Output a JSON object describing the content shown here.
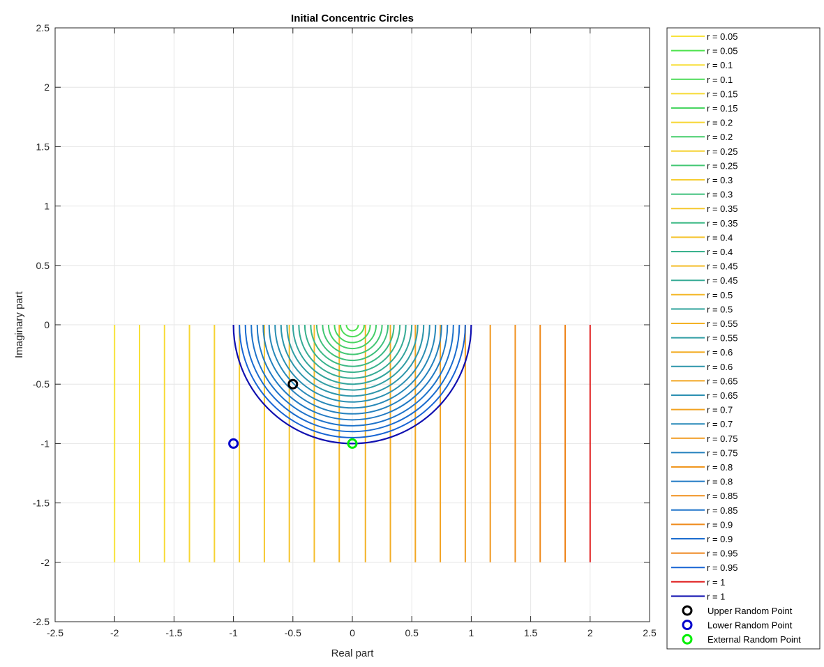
{
  "chart_data": {
    "type": "line",
    "title": "Initial Concentric Circles",
    "xlabel": "Real part",
    "ylabel": "Imaginary part",
    "xlim": [
      -2.5,
      2.5
    ],
    "ylim": [
      -2.5,
      2.5
    ],
    "xticks": [
      -2.5,
      -2,
      -1.5,
      -1,
      -0.5,
      0,
      0.5,
      1,
      1.5,
      2,
      2.5
    ],
    "yticks": [
      -2.5,
      -2,
      -1.5,
      -1,
      -0.5,
      0,
      0.5,
      1,
      1.5,
      2,
      2.5
    ],
    "xtick_labels": [
      "-2.5",
      "-2",
      "-1.5",
      "-1",
      "-0.5",
      "0",
      "0.5",
      "1",
      "1.5",
      "2",
      "2.5"
    ],
    "ytick_labels": [
      "-2.5",
      "-2",
      "-1.5",
      "-1",
      "-0.5",
      "0",
      "0.5",
      "1",
      "1.5",
      "2",
      "2.5"
    ],
    "grid": true,
    "legend_position": "outside-right",
    "radii": [
      0.05,
      0.1,
      0.15,
      0.2,
      0.25,
      0.3,
      0.35,
      0.4,
      0.45,
      0.5,
      0.55,
      0.6,
      0.65,
      0.7,
      0.75,
      0.8,
      0.85,
      0.9,
      0.95,
      1
    ],
    "vertical_lines": {
      "description": "Vertical lines x = 2r*... rendered from y=0 down to y=-2 for each radius",
      "x": [
        -2.0,
        -1.79,
        -1.58,
        -1.37,
        -1.16,
        -0.95,
        -0.74,
        -0.53,
        -0.32,
        -0.11,
        0.11,
        0.32,
        0.53,
        0.74,
        0.95,
        1.16,
        1.37,
        1.58,
        1.79,
        2.0
      ],
      "y_range": [
        -2,
        0
      ],
      "colors": [
        "#f7e33a",
        "#f7df38",
        "#f7db36",
        "#f7d634",
        "#f6d232",
        "#f6cd30",
        "#f5c82e",
        "#f5c32c",
        "#f4bd2a",
        "#f4b828",
        "#f3b226",
        "#f3ad25",
        "#f2a723",
        "#f2a221",
        "#f19c20",
        "#f0961e",
        "#f0901d",
        "#ef8a1b",
        "#ee841a",
        "#e02020"
      ]
    },
    "semicircles": {
      "center": [
        0,
        0
      ],
      "lower_half": true,
      "colors": [
        "#4ee34e",
        "#4bdc58",
        "#48d561",
        "#45ce6a",
        "#42c773",
        "#3fc07c",
        "#3cb985",
        "#39b28d",
        "#36ab95",
        "#33a49d",
        "#309da4",
        "#2d96ab",
        "#2a8fb2",
        "#2788b8",
        "#2481be",
        "#217ac4",
        "#1e73ca",
        "#1b6ccf",
        "#1865d4",
        "#1010b0"
      ]
    },
    "points": [
      {
        "name": "Upper Random Point",
        "x": -0.5,
        "y": -0.5,
        "color": "#000000"
      },
      {
        "name": "Lower Random Point",
        "x": -1.0,
        "y": -1.0,
        "color": "#0000cc"
      },
      {
        "name": "External Random Point",
        "x": 0.0,
        "y": -1.0,
        "color": "#00ee00"
      }
    ],
    "legend": [
      {
        "label": "r = 0.05",
        "color": "#f7e33a",
        "kind": "line"
      },
      {
        "label": "r = 0.05",
        "color": "#4ee34e",
        "kind": "line"
      },
      {
        "label": "r = 0.1",
        "color": "#f7df38",
        "kind": "line"
      },
      {
        "label": "r = 0.1",
        "color": "#4bdc58",
        "kind": "line"
      },
      {
        "label": "r = 0.15",
        "color": "#f7db36",
        "kind": "line"
      },
      {
        "label": "r = 0.15",
        "color": "#48d561",
        "kind": "line"
      },
      {
        "label": "r = 0.2",
        "color": "#f7d634",
        "kind": "line"
      },
      {
        "label": "r = 0.2",
        "color": "#45ce6a",
        "kind": "line"
      },
      {
        "label": "r = 0.25",
        "color": "#f6d232",
        "kind": "line"
      },
      {
        "label": "r = 0.25",
        "color": "#42c773",
        "kind": "line"
      },
      {
        "label": "r = 0.3",
        "color": "#f6cd30",
        "kind": "line"
      },
      {
        "label": "r = 0.3",
        "color": "#3fc07c",
        "kind": "line"
      },
      {
        "label": "r = 0.35",
        "color": "#f5c82e",
        "kind": "line"
      },
      {
        "label": "r = 0.35",
        "color": "#3cb985",
        "kind": "line"
      },
      {
        "label": "r = 0.4",
        "color": "#f5c32c",
        "kind": "line"
      },
      {
        "label": "r = 0.4",
        "color": "#39b28d",
        "kind": "line"
      },
      {
        "label": "r = 0.45",
        "color": "#f4bd2a",
        "kind": "line"
      },
      {
        "label": "r = 0.45",
        "color": "#36ab95",
        "kind": "line"
      },
      {
        "label": "r = 0.5",
        "color": "#f4b828",
        "kind": "line"
      },
      {
        "label": "r = 0.5",
        "color": "#33a49d",
        "kind": "line"
      },
      {
        "label": "r = 0.55",
        "color": "#f3b226",
        "kind": "line"
      },
      {
        "label": "r = 0.55",
        "color": "#309da4",
        "kind": "line"
      },
      {
        "label": "r = 0.6",
        "color": "#f3ad25",
        "kind": "line"
      },
      {
        "label": "r = 0.6",
        "color": "#2d96ab",
        "kind": "line"
      },
      {
        "label": "r = 0.65",
        "color": "#f2a723",
        "kind": "line"
      },
      {
        "label": "r = 0.65",
        "color": "#2a8fb2",
        "kind": "line"
      },
      {
        "label": "r = 0.7",
        "color": "#f2a221",
        "kind": "line"
      },
      {
        "label": "r = 0.7",
        "color": "#2788b8",
        "kind": "line"
      },
      {
        "label": "r = 0.75",
        "color": "#f19c20",
        "kind": "line"
      },
      {
        "label": "r = 0.75",
        "color": "#2481be",
        "kind": "line"
      },
      {
        "label": "r = 0.8",
        "color": "#f0961e",
        "kind": "line"
      },
      {
        "label": "r = 0.8",
        "color": "#217ac4",
        "kind": "line"
      },
      {
        "label": "r = 0.85",
        "color": "#f0901d",
        "kind": "line"
      },
      {
        "label": "r = 0.85",
        "color": "#1e73ca",
        "kind": "line"
      },
      {
        "label": "r = 0.9",
        "color": "#ef8a1b",
        "kind": "line"
      },
      {
        "label": "r = 0.9",
        "color": "#1b6ccf",
        "kind": "line"
      },
      {
        "label": "r = 0.95",
        "color": "#ee841a",
        "kind": "line"
      },
      {
        "label": "r = 0.95",
        "color": "#1865d4",
        "kind": "line"
      },
      {
        "label": "r = 1",
        "color": "#e02020",
        "kind": "line"
      },
      {
        "label": "r = 1",
        "color": "#1010b0",
        "kind": "line"
      },
      {
        "label": "Upper Random Point",
        "color": "#000000",
        "kind": "marker"
      },
      {
        "label": "Lower Random Point",
        "color": "#0000cc",
        "kind": "marker"
      },
      {
        "label": "External Random Point",
        "color": "#00ee00",
        "kind": "marker"
      }
    ]
  }
}
